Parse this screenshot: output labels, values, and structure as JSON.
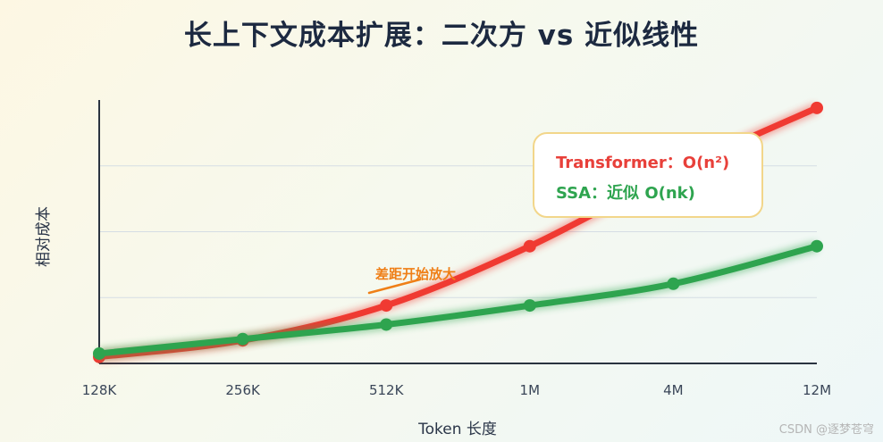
{
  "title": "长上下文成本扩展：二次方 vs 近似线性",
  "chart_data": {
    "type": "line",
    "categories": [
      "128K",
      "256K",
      "512K",
      "1M",
      "4M",
      "12M"
    ],
    "xlabel": "Token 长度",
    "ylabel": "相对成本",
    "ylim": [
      0,
      4
    ],
    "grid": true,
    "legend_position": "top-right",
    "series": [
      {
        "name": "Transformer：O(n²)",
        "color": "#f03a32",
        "values": [
          0.1,
          0.35,
          0.88,
          1.78,
          2.9,
          3.88
        ]
      },
      {
        "name": "SSA：近似 O(nk)",
        "color": "#2ea44f",
        "values": [
          0.15,
          0.37,
          0.59,
          0.88,
          1.21,
          1.78
        ]
      }
    ],
    "annotation": {
      "text": "差距开始放大",
      "color": "#ef7f17"
    }
  },
  "watermark": "CSDN @逐梦苍穹"
}
